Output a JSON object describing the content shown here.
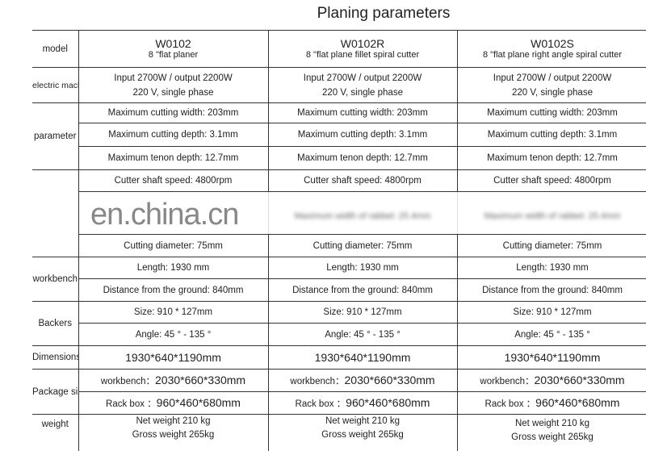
{
  "title": "Planing parameters",
  "watermark": "en.china.cn",
  "labels": {
    "model": "model",
    "electric": "electric machinery",
    "parameter": "parameter",
    "workbench": "workbench",
    "backers": "Backers",
    "dimensions": "Dimensions",
    "package": "Package size",
    "weight": "weight"
  },
  "models": [
    {
      "code": "W0102",
      "name": "8 \"flat planer"
    },
    {
      "code": "W0102R",
      "name": "8 \"flat plane fillet spiral cutter"
    },
    {
      "code": "W0102S",
      "name": "8 \"flat plane right angle spiral cutter"
    }
  ],
  "rows": {
    "power": "Input 2700W / output 2200W",
    "voltage": "220 V, single phase",
    "max_width": "Maximum cutting width: 203mm",
    "max_depth": "Maximum cutting depth: 3.1mm",
    "max_tenon": "Maximum tenon depth: 12.7mm",
    "shaft_speed": "Cutter shaft speed: 4800rpm",
    "blurred": "Maximum width of rabbet: 25.4mm",
    "cutting_diameter": "Cutting diameter: 75mm",
    "length": "Length: 1930 mm",
    "ground": "Distance from the ground: 840mm",
    "size": "Size: 910 * 127mm",
    "angle": "Angle: 45 ° - 135 °",
    "dimensions": "1930*640*1190mm",
    "pkg_workbench_label": "workbench：",
    "pkg_workbench": "2030*660*330mm",
    "pkg_rack_label": "Rack box ：",
    "pkg_rack": "960*460*680mm",
    "net_weight": "Net weight 210 kg",
    "gross_weight": "Gross weight 265kg"
  }
}
